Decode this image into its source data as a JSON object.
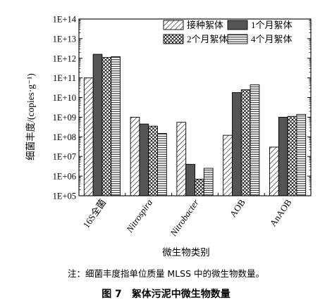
{
  "chart_data": {
    "type": "bar",
    "title": "",
    "xlabel": "微生物类别",
    "ylabel": "细菌丰度/(copies·g⁻¹)",
    "yscale": "log",
    "ylim": [
      100000,
      100000000000000
    ],
    "ytick_labels": [
      "1E+05",
      "1E+06",
      "1E+07",
      "1E+08",
      "1E+09",
      "1E+10",
      "1E+11",
      "1E+12",
      "1E+13",
      "1E+14"
    ],
    "grid": false,
    "legend_position": "top-right",
    "categories": [
      "16S全菌",
      "Nitrospira",
      "Nitrobacter",
      "AOB",
      "AnAOB"
    ],
    "series": [
      {
        "name": "接种絮体",
        "pattern": "diagonal-hatch",
        "values": [
          100000000000,
          1000000000,
          550000000,
          120000000,
          30000000
        ]
      },
      {
        "name": "1个月絮体",
        "pattern": "solid-dark",
        "color": "#555555",
        "values": [
          1600000000000,
          450000000,
          4000000,
          18000000000,
          1000000000
        ]
      },
      {
        "name": "2个月絮体",
        "pattern": "crosshatch",
        "values": [
          1100000000000,
          350000000,
          700000,
          25000000000,
          1100000000
        ]
      },
      {
        "name": "4个月絮体",
        "pattern": "horizontal-lines",
        "values": [
          1200000000000,
          150000000,
          2500000,
          45000000000,
          1400000000
        ]
      }
    ]
  },
  "figure": {
    "note": "注：细菌丰度指单位质量 MLSS 中的微生物数量。",
    "caption": "图 7　絮体污泥中微生物数量"
  }
}
